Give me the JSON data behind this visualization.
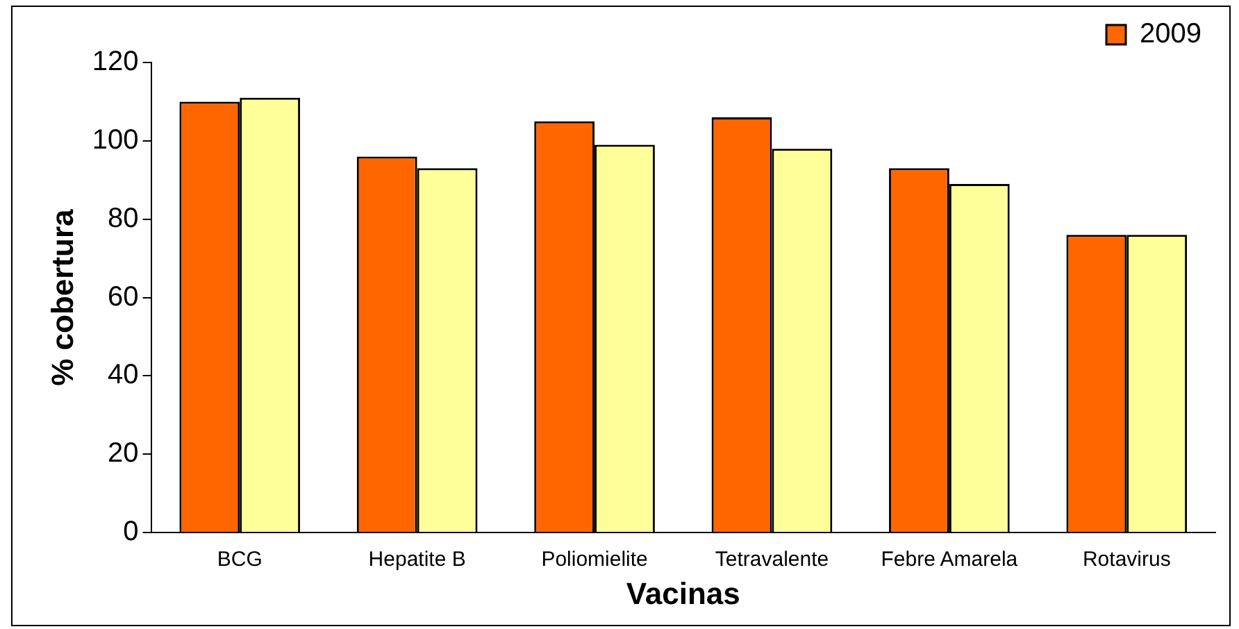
{
  "chart_data": {
    "type": "bar",
    "xlabel": "Vacinas",
    "ylabel": "% cobertura",
    "categories": [
      "BCG",
      "Hepatite B",
      "Poliomielite",
      "Tetravalente",
      "Febre Amarela",
      "Rotavirus"
    ],
    "series": [
      {
        "name": "2009",
        "color": "#ff6600",
        "values": [
          110,
          96,
          105,
          106,
          93,
          76
        ]
      },
      {
        "color": "#ffff99",
        "values": [
          111,
          93,
          99,
          98,
          89,
          76
        ]
      }
    ],
    "ylim": [
      0,
      120
    ],
    "yticks": [
      0,
      20,
      40,
      60,
      80,
      100,
      120
    ],
    "grid": false,
    "legend": "top right"
  }
}
